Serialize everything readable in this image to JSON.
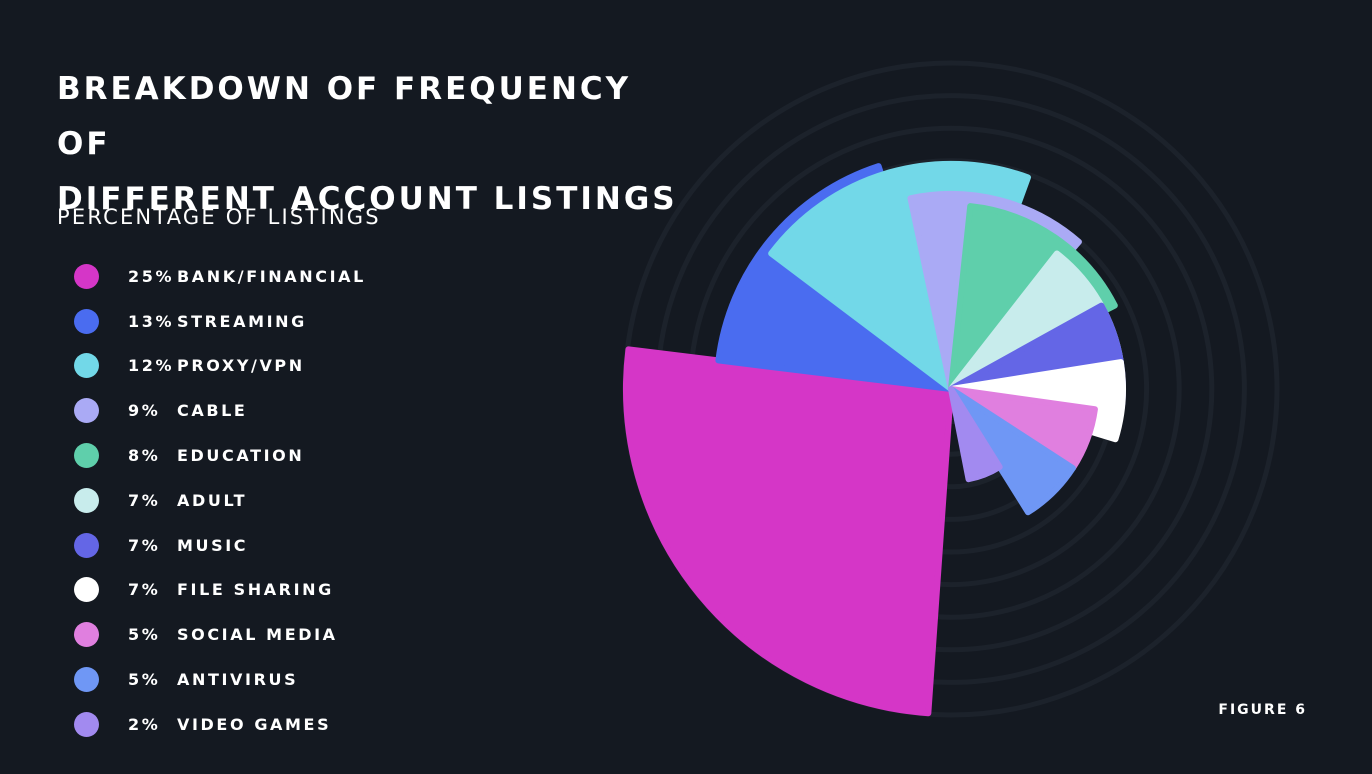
{
  "chart_data": {
    "type": "polar-area",
    "title_line1": "BREAKDOWN OF FREQUENCY OF",
    "title_line2": "DIFFERENT ACCOUNT LISTINGS",
    "subtitle": "PERCENTAGE OF LISTINGS",
    "unit": "%",
    "grid": true,
    "legend_position": "left",
    "categories": [
      "BANK/FINANCIAL",
      "STREAMING",
      "PROXY/VPN",
      "CABLE",
      "EDUCATION",
      "ADULT",
      "MUSIC",
      "FILE SHARING",
      "SOCIAL MEDIA",
      "ANTIVIRUS",
      "VIDEO GAMES"
    ],
    "values": [
      25,
      13,
      12,
      9,
      8,
      7,
      7,
      7,
      5,
      5,
      2
    ],
    "value_labels": [
      "25%",
      "13%",
      "12%",
      "9%",
      "8%",
      "7%",
      "7%",
      "7%",
      "5%",
      "5%",
      "2%"
    ],
    "colors": [
      "#d536c7",
      "#4a6cf0",
      "#72d8e8",
      "#aaaaf5",
      "#5fcfab",
      "#c8ecec",
      "#6466e6",
      "#ffffff",
      "#e07fdf",
      "#6f97f5",
      "#a28af0"
    ]
  },
  "figure_label": "FIGURE 6"
}
